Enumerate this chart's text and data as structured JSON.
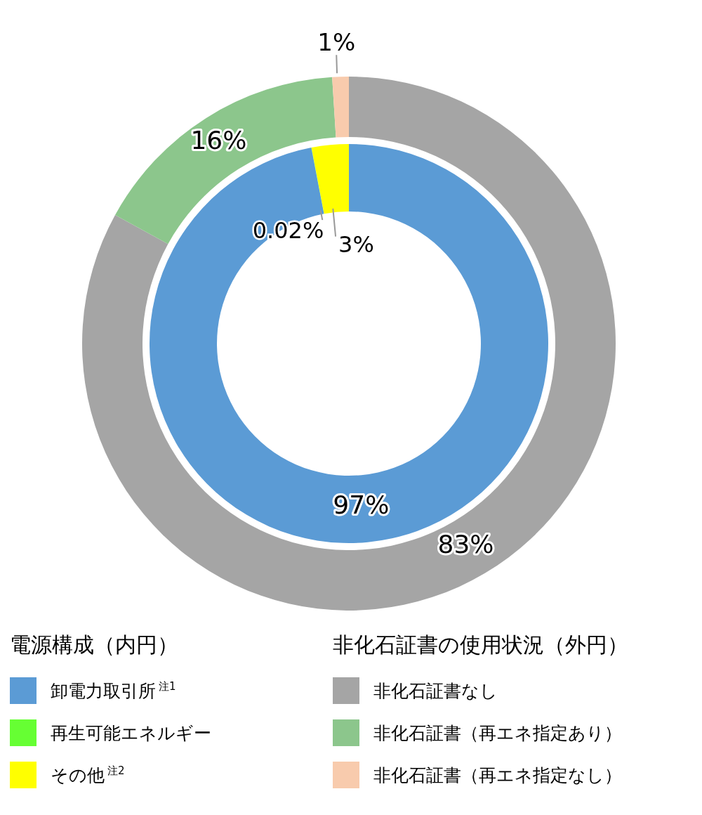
{
  "chart_data": [
    {
      "type": "donut",
      "legend_title": "電源構成（内円）",
      "categories": [
        "卸電力取引所$^{注1}$",
        "再生可能エネルギー",
        "その他$^{注2}$"
      ],
      "values": [
        97,
        0.02,
        3
      ],
      "colors": [
        "#5b9bd5",
        "#66ff33",
        "#ffff00"
      ],
      "value_labels": [
        "97%",
        "0.02%",
        "3%"
      ],
      "legend": "bottom left"
    },
    {
      "type": "donut",
      "legend_title": "非化石証書の使用状況（外円）",
      "categories": [
        "非化石証書なし",
        "非化石証書（再エネ指定あり）",
        "非化石証書（再エネ指定なし）"
      ],
      "values": [
        83,
        16,
        1
      ],
      "colors": [
        "#a5a5a5",
        "#8cc68c",
        "#f8cbad"
      ],
      "value_labels": [
        "83%",
        "16%",
        "1%"
      ],
      "legend": "bottom right"
    }
  ]
}
